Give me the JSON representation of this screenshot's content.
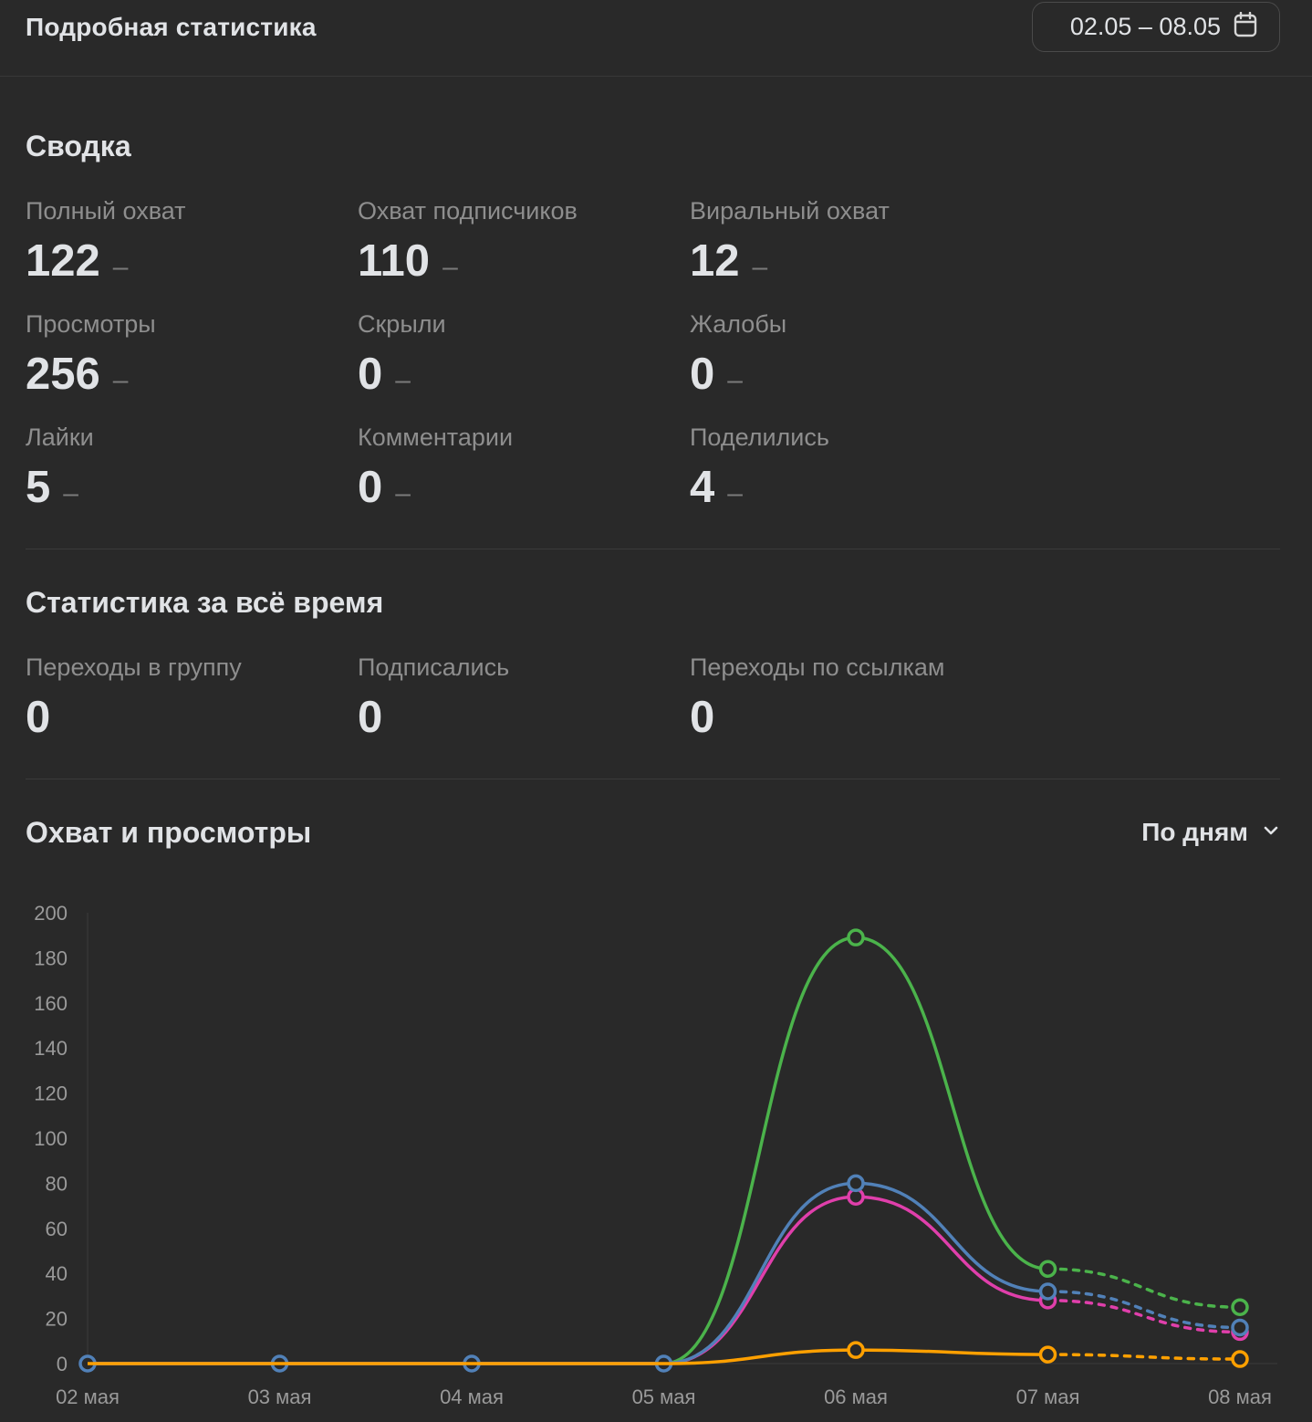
{
  "header": {
    "title": "Подробная статистика",
    "date_range": "02.05 – 08.05"
  },
  "summary": {
    "title": "Сводка",
    "metrics": [
      {
        "label": "Полный охват",
        "value": "122",
        "delta": "–"
      },
      {
        "label": "Охват подписчиков",
        "value": "110",
        "delta": "–"
      },
      {
        "label": "Виральный охват",
        "value": "12",
        "delta": "–"
      },
      {
        "label": "Просмотры",
        "value": "256",
        "delta": "–"
      },
      {
        "label": "Скрыли",
        "value": "0",
        "delta": "–"
      },
      {
        "label": "Жалобы",
        "value": "0",
        "delta": "–"
      },
      {
        "label": "Лайки",
        "value": "5",
        "delta": "–"
      },
      {
        "label": "Комментарии",
        "value": "0",
        "delta": "–"
      },
      {
        "label": "Поделились",
        "value": "4",
        "delta": "–"
      }
    ]
  },
  "alltime": {
    "title": "Статистика за всё время",
    "metrics": [
      {
        "label": "Переходы в группу",
        "value": "0"
      },
      {
        "label": "Подписались",
        "value": "0"
      },
      {
        "label": "Переходы по ссылкам",
        "value": "0"
      }
    ]
  },
  "reach_section": {
    "title": "Охват и просмотры",
    "period_label": "По дням"
  },
  "colors": {
    "background": "#292929",
    "green": "#4bb34b",
    "blue": "#5181b8",
    "pink": "#e03fab",
    "orange": "#ffa000"
  },
  "icons": {
    "calendar": "calendar-icon",
    "chevron": "chevron-down-icon"
  },
  "chart_data": {
    "type": "line",
    "categories": [
      "02 мая",
      "03 мая",
      "04 мая",
      "05 мая",
      "06 мая",
      "07 мая",
      "08 мая"
    ],
    "ylim": [
      0,
      200
    ],
    "yticks": [
      0,
      20,
      40,
      60,
      80,
      100,
      120,
      140,
      160,
      180,
      200
    ],
    "dashed_from_index": 5,
    "series": [
      {
        "color": "#4bb34b",
        "values": [
          0,
          0,
          0,
          0,
          189,
          42,
          25
        ]
      },
      {
        "color": "#e03fab",
        "values": [
          0,
          0,
          0,
          0,
          74,
          28,
          14
        ]
      },
      {
        "color": "#5181b8",
        "values": [
          0,
          0,
          0,
          0,
          80,
          32,
          16
        ]
      },
      {
        "color": "#ffa000",
        "values": [
          0,
          0,
          0,
          0,
          6,
          4,
          2
        ]
      }
    ]
  }
}
